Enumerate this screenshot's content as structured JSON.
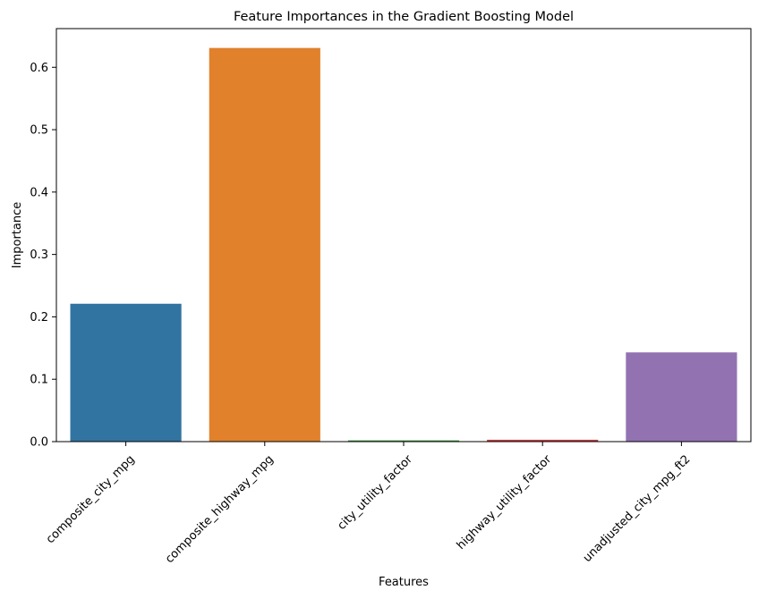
{
  "chart_data": {
    "type": "bar",
    "title": "Feature Importances in the Gradient Boosting Model",
    "xlabel": "Features",
    "ylabel": "Importance",
    "categories": [
      "composite_city_mpg",
      "composite_highway_mpg",
      "city_utility_factor",
      "highway_utility_factor",
      "unadjusted_city_mpg_ft2"
    ],
    "values": [
      0.221,
      0.631,
      0.002,
      0.003,
      0.143
    ],
    "colors": [
      "#3274a1",
      "#e1812c",
      "#3a923a",
      "#c03d3e",
      "#9372b2"
    ],
    "ylim": [
      0,
      0.662
    ],
    "yticks": [
      0.0,
      0.1,
      0.2,
      0.3,
      0.4,
      0.5,
      0.6
    ],
    "ytick_labels": [
      "0.0",
      "0.1",
      "0.2",
      "0.3",
      "0.4",
      "0.5",
      "0.6"
    ],
    "grid": false,
    "legend": "none"
  }
}
